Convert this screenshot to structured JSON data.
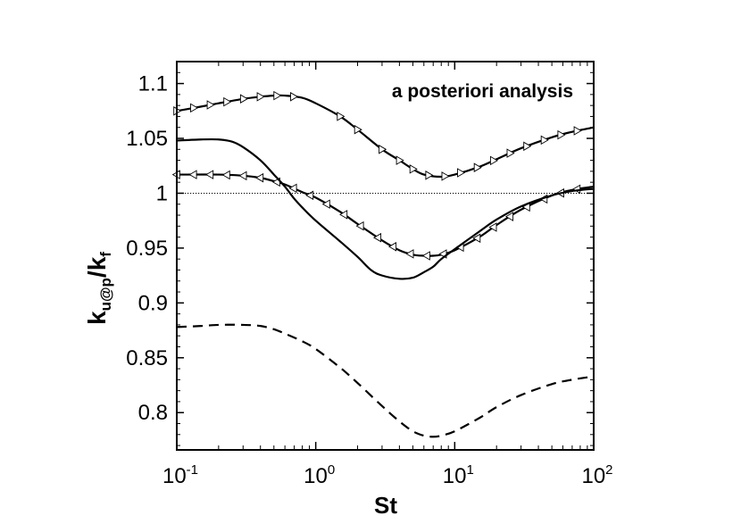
{
  "chart_data": {
    "type": "line",
    "annotation": "a posteriori analysis",
    "xlabel": "St",
    "ylabel": {
      "main": "k",
      "sub1": "u@p",
      "mid": "/k",
      "sub2": "f"
    },
    "x_scale": "log",
    "xlim": [
      0.1,
      100
    ],
    "ylim": [
      0.766,
      1.12
    ],
    "x_ticks": [
      {
        "value": 0.1,
        "base": "10",
        "exp": "-1"
      },
      {
        "value": 1,
        "base": "10",
        "exp": "0"
      },
      {
        "value": 10,
        "base": "10",
        "exp": "1"
      },
      {
        "value": 100,
        "base": "10",
        "exp": "2"
      }
    ],
    "y_ticks": [
      {
        "value": 0.8,
        "label": "0.8"
      },
      {
        "value": 0.85,
        "label": "0.85"
      },
      {
        "value": 0.9,
        "label": "0.9"
      },
      {
        "value": 0.95,
        "label": "0.95"
      },
      {
        "value": 1.0,
        "label": "1"
      },
      {
        "value": 1.05,
        "label": "1.05"
      },
      {
        "value": 1.1,
        "label": "1.1"
      }
    ],
    "reference_line": {
      "y": 1.0,
      "style": "dotted"
    },
    "grid": false,
    "series": [
      {
        "style": "solid",
        "marker": "triangle-right",
        "points": [
          [
            0.1,
            1.075
          ],
          [
            0.15,
            1.079
          ],
          [
            0.2,
            1.082
          ],
          [
            0.3,
            1.086
          ],
          [
            0.4,
            1.088
          ],
          [
            0.5,
            1.089
          ],
          [
            0.6,
            1.089
          ],
          [
            0.8,
            1.087
          ],
          [
            1.0,
            1.082
          ],
          [
            1.5,
            1.07
          ],
          [
            2.0,
            1.058
          ],
          [
            3.0,
            1.04
          ],
          [
            4.0,
            1.03
          ],
          [
            5.0,
            1.022
          ],
          [
            6.0,
            1.017
          ],
          [
            8.0,
            1.015
          ],
          [
            10.0,
            1.017
          ],
          [
            15.0,
            1.024
          ],
          [
            20.0,
            1.031
          ],
          [
            30.0,
            1.041
          ],
          [
            50.0,
            1.051
          ],
          [
            70.0,
            1.056
          ],
          [
            100.0,
            1.06
          ]
        ],
        "marker_x": [
          0.1,
          0.132,
          0.174,
          0.229,
          0.302,
          0.398,
          0.525,
          0.692,
          1.5,
          2.0,
          3.0,
          4.0,
          5.0,
          6.5,
          8.5,
          11.0,
          14.5,
          19.0,
          25.0,
          33.0,
          44.0,
          58.0,
          76.0
        ]
      },
      {
        "style": "solid",
        "marker": "triangle-left",
        "points": [
          [
            0.1,
            1.017
          ],
          [
            0.2,
            1.017
          ],
          [
            0.3,
            1.016
          ],
          [
            0.4,
            1.014
          ],
          [
            0.5,
            1.011
          ],
          [
            0.6,
            1.008
          ],
          [
            0.8,
            1.001
          ],
          [
            1.0,
            0.996
          ],
          [
            1.5,
            0.983
          ],
          [
            2.0,
            0.972
          ],
          [
            3.0,
            0.957
          ],
          [
            4.0,
            0.948
          ],
          [
            5.0,
            0.944
          ],
          [
            6.0,
            0.943
          ],
          [
            7.0,
            0.943
          ],
          [
            8.0,
            0.944
          ],
          [
            10.0,
            0.948
          ],
          [
            15.0,
            0.96
          ],
          [
            20.0,
            0.971
          ],
          [
            30.0,
            0.985
          ],
          [
            50.0,
            0.998
          ],
          [
            70.0,
            1.003
          ],
          [
            100.0,
            1.006
          ]
        ],
        "marker_x": [
          0.1,
          0.132,
          0.174,
          0.229,
          0.302,
          0.398,
          0.525,
          0.692,
          0.912,
          1.2,
          1.6,
          2.1,
          2.8,
          3.6,
          4.8,
          6.3,
          8.3,
          11.0,
          14.5,
          19.0,
          25.0,
          33.0,
          44.0,
          58.0,
          76.0
        ]
      },
      {
        "style": "solid",
        "marker": "none",
        "points": [
          [
            0.1,
            1.048
          ],
          [
            0.15,
            1.049
          ],
          [
            0.2,
            1.049
          ],
          [
            0.25,
            1.047
          ],
          [
            0.3,
            1.042
          ],
          [
            0.4,
            1.03
          ],
          [
            0.5,
            1.017
          ],
          [
            0.6,
            1.006
          ],
          [
            0.7,
            0.995
          ],
          [
            0.8,
            0.987
          ],
          [
            1.0,
            0.975
          ],
          [
            1.5,
            0.956
          ],
          [
            2.0,
            0.942
          ],
          [
            2.5,
            0.93
          ],
          [
            3.0,
            0.925
          ],
          [
            4.0,
            0.922
          ],
          [
            5.0,
            0.923
          ],
          [
            6.0,
            0.928
          ],
          [
            7.0,
            0.933
          ],
          [
            8.0,
            0.94
          ],
          [
            10.0,
            0.949
          ],
          [
            15.0,
            0.965
          ],
          [
            20.0,
            0.976
          ],
          [
            30.0,
            0.988
          ],
          [
            50.0,
            0.998
          ],
          [
            70.0,
            1.002
          ],
          [
            100.0,
            1.004
          ]
        ]
      },
      {
        "style": "dashed",
        "marker": "none",
        "points": [
          [
            0.1,
            0.878
          ],
          [
            0.15,
            0.879
          ],
          [
            0.2,
            0.88
          ],
          [
            0.3,
            0.88
          ],
          [
            0.4,
            0.879
          ],
          [
            0.5,
            0.876
          ],
          [
            0.6,
            0.872
          ],
          [
            0.8,
            0.865
          ],
          [
            1.0,
            0.858
          ],
          [
            1.5,
            0.841
          ],
          [
            2.0,
            0.827
          ],
          [
            3.0,
            0.806
          ],
          [
            4.0,
            0.792
          ],
          [
            5.0,
            0.783
          ],
          [
            6.0,
            0.779
          ],
          [
            7.0,
            0.778
          ],
          [
            8.0,
            0.779
          ],
          [
            10.0,
            0.783
          ],
          [
            15.0,
            0.795
          ],
          [
            20.0,
            0.805
          ],
          [
            30.0,
            0.816
          ],
          [
            50.0,
            0.826
          ],
          [
            70.0,
            0.83
          ],
          [
            100.0,
            0.833
          ]
        ]
      }
    ]
  }
}
